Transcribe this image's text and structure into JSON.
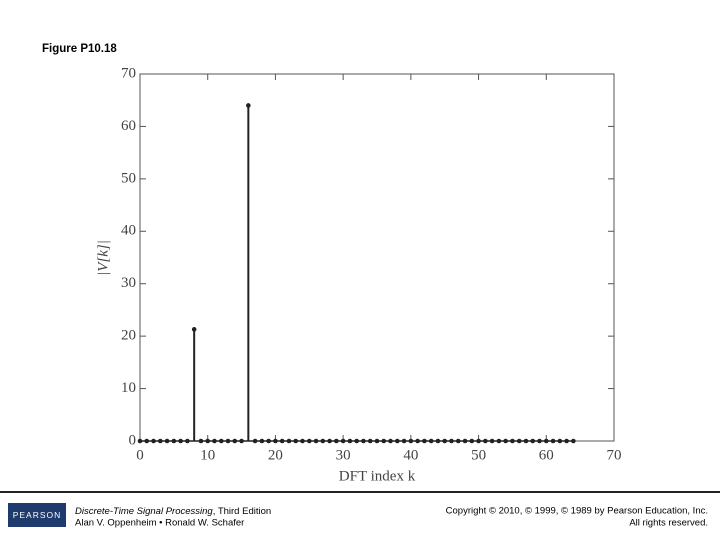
{
  "figure_label": "Figure P10.18",
  "chart_data": {
    "type": "stem",
    "ylabel": "|V[k]|",
    "xlabel": "DFT index k",
    "x": [
      0,
      1,
      2,
      3,
      4,
      5,
      6,
      7,
      8,
      9,
      10,
      11,
      12,
      13,
      14,
      15,
      16,
      17,
      18,
      19,
      20,
      21,
      22,
      23,
      24,
      25,
      26,
      27,
      28,
      29,
      30,
      31,
      32,
      33,
      34,
      35,
      36,
      37,
      38,
      39,
      40,
      41,
      42,
      43,
      44,
      45,
      46,
      47,
      48,
      49,
      50,
      51,
      52,
      53,
      54,
      55,
      56,
      57,
      58,
      59,
      60,
      61,
      62,
      63,
      64
    ],
    "values": [
      0,
      0,
      0,
      0,
      0,
      0,
      0,
      0,
      21.3,
      0,
      0,
      0,
      0,
      0,
      0,
      0,
      64,
      0,
      0,
      0,
      0,
      0,
      0,
      0,
      0,
      0,
      0,
      0,
      0,
      0,
      0,
      0,
      0,
      0,
      0,
      0,
      0,
      0,
      0,
      0,
      0,
      0,
      0,
      0,
      0,
      0,
      0,
      0,
      0,
      0,
      0,
      0,
      0,
      0,
      0,
      0,
      0,
      0,
      0,
      0,
      0,
      0,
      0,
      0,
      0
    ],
    "color": "#222222",
    "xlim": [
      0,
      70
    ],
    "xticks": [
      0,
      10,
      20,
      30,
      40,
      50,
      60,
      70
    ],
    "ylim": [
      0,
      70
    ],
    "yticks": [
      0,
      10,
      20,
      30,
      40,
      50,
      60,
      70
    ]
  },
  "footer": {
    "logo": "PEARSON",
    "book_title": "Discrete-Time Signal Processing",
    "edition": ", Third Edition",
    "authors": "Alan V. Oppenheim • Ronald W. Schafer",
    "copyright": "Copyright © 2010, © 1999, © 1989 by Pearson Education, Inc.",
    "rights": "All rights reserved."
  }
}
